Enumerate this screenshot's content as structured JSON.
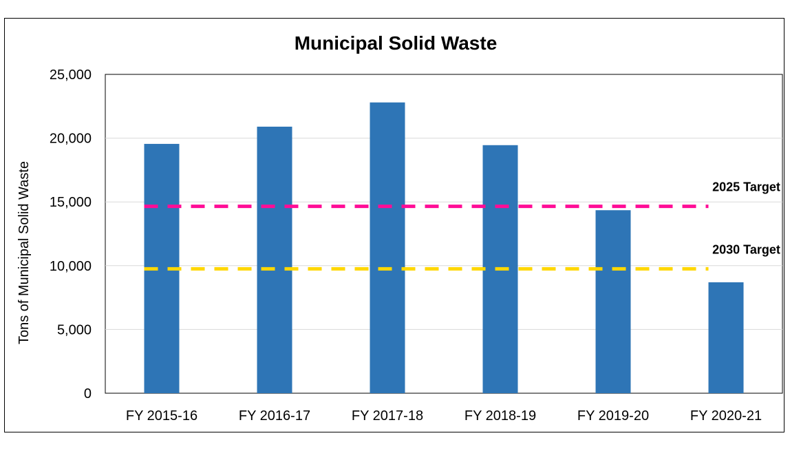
{
  "chart_data": {
    "type": "bar",
    "title": "Municipal Solid Waste",
    "xlabel": "",
    "ylabel": "Tons of Municipal Solid Waste",
    "categories": [
      "FY 2015-16",
      "FY 2016-17",
      "FY 2017-18",
      "FY 2018-19",
      "FY 2019-20",
      "FY 2020-21"
    ],
    "values": [
      19550,
      20900,
      22800,
      19450,
      14350,
      8700
    ],
    "ylim": [
      0,
      25000
    ],
    "yticks": [
      0,
      5000,
      10000,
      15000,
      20000,
      25000
    ],
    "ytick_labels": [
      "0",
      "5,000",
      "10,000",
      "15,000",
      "20,000",
      "25,000"
    ],
    "grid": true,
    "bar_color": "#2E75B6",
    "reference_lines": [
      {
        "label": "2025 Target",
        "value": 14650,
        "color": "#FF0D96",
        "style": "dashed"
      },
      {
        "label": "2030 Target",
        "value": 9750,
        "color": "#FFD700",
        "style": "dashed"
      }
    ]
  }
}
